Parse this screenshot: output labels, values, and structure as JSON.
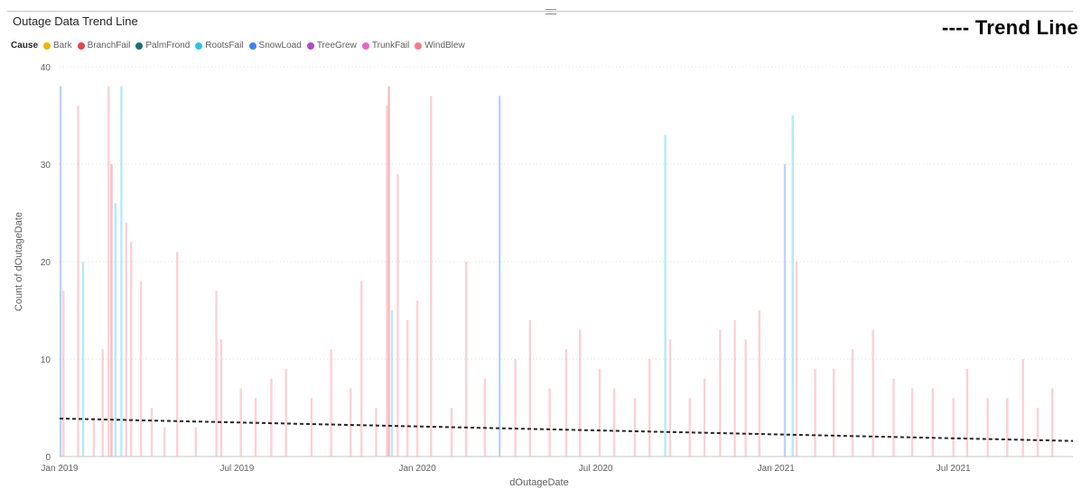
{
  "chart_data": {
    "type": "bar",
    "title": "Outage Data Trend Line",
    "annotation": "---- Trend Line",
    "xlabel": "dOutageDate",
    "ylabel": "Count of dOutageDate",
    "ylim": [
      0,
      40
    ],
    "yticks": [
      0,
      10,
      20,
      30,
      40
    ],
    "xlim": [
      "2019-01-01",
      "2021-10-31"
    ],
    "xticks": [
      {
        "date": "2019-01-01",
        "label": "Jan 2019"
      },
      {
        "date": "2019-07-01",
        "label": "Jul 2019"
      },
      {
        "date": "2020-01-01",
        "label": "Jan 2020"
      },
      {
        "date": "2020-07-01",
        "label": "Jul 2020"
      },
      {
        "date": "2021-01-01",
        "label": "Jan 2021"
      },
      {
        "date": "2021-07-01",
        "label": "Jul 2021"
      }
    ],
    "grid": true,
    "legend_position": "top-left",
    "legend": {
      "title": "Cause",
      "items": [
        {
          "name": "Bark",
          "color": "#E6B800"
        },
        {
          "name": "BranchFail",
          "color": "#E8434B"
        },
        {
          "name": "PalmFrond",
          "color": "#1B6E77"
        },
        {
          "name": "RootsFail",
          "color": "#2CC3E8"
        },
        {
          "name": "SnowLoad",
          "color": "#3B82F6"
        },
        {
          "name": "TreeGrew",
          "color": "#B04ACC"
        },
        {
          "name": "TrunkFail",
          "color": "#E964C4"
        },
        {
          "name": "WindBlew",
          "color": "#F47C8A"
        }
      ]
    },
    "spikes": [
      {
        "date": "2019-01-02",
        "value": 38,
        "cause": "SnowLoad"
      },
      {
        "date": "2019-01-05",
        "value": 17,
        "cause": "WindBlew"
      },
      {
        "date": "2019-01-20",
        "value": 36,
        "cause": "WindBlew"
      },
      {
        "date": "2019-01-25",
        "value": 20,
        "cause": "RootsFail"
      },
      {
        "date": "2019-02-05",
        "value": 4,
        "cause": "WindBlew"
      },
      {
        "date": "2019-02-14",
        "value": 11,
        "cause": "WindBlew"
      },
      {
        "date": "2019-02-20",
        "value": 38,
        "cause": "WindBlew"
      },
      {
        "date": "2019-02-23",
        "value": 30,
        "cause": "BranchFail"
      },
      {
        "date": "2019-02-27",
        "value": 26,
        "cause": "RootsFail"
      },
      {
        "date": "2019-03-05",
        "value": 38,
        "cause": "RootsFail"
      },
      {
        "date": "2019-03-10",
        "value": 24,
        "cause": "WindBlew"
      },
      {
        "date": "2019-03-15",
        "value": 22,
        "cause": "WindBlew"
      },
      {
        "date": "2019-03-25",
        "value": 18,
        "cause": "WindBlew"
      },
      {
        "date": "2019-04-05",
        "value": 5,
        "cause": "WindBlew"
      },
      {
        "date": "2019-04-18",
        "value": 3,
        "cause": "WindBlew"
      },
      {
        "date": "2019-05-01",
        "value": 21,
        "cause": "WindBlew"
      },
      {
        "date": "2019-05-20",
        "value": 3,
        "cause": "WindBlew"
      },
      {
        "date": "2019-06-10",
        "value": 17,
        "cause": "WindBlew"
      },
      {
        "date": "2019-06-15",
        "value": 12,
        "cause": "WindBlew"
      },
      {
        "date": "2019-07-05",
        "value": 7,
        "cause": "WindBlew"
      },
      {
        "date": "2019-07-20",
        "value": 6,
        "cause": "WindBlew"
      },
      {
        "date": "2019-08-05",
        "value": 8,
        "cause": "WindBlew"
      },
      {
        "date": "2019-08-20",
        "value": 9,
        "cause": "WindBlew"
      },
      {
        "date": "2019-09-15",
        "value": 6,
        "cause": "WindBlew"
      },
      {
        "date": "2019-10-05",
        "value": 11,
        "cause": "WindBlew"
      },
      {
        "date": "2019-10-25",
        "value": 7,
        "cause": "WindBlew"
      },
      {
        "date": "2019-11-05",
        "value": 18,
        "cause": "WindBlew"
      },
      {
        "date": "2019-11-20",
        "value": 5,
        "cause": "WindBlew"
      },
      {
        "date": "2019-12-01",
        "value": 36,
        "cause": "WindBlew"
      },
      {
        "date": "2019-12-03",
        "value": 38,
        "cause": "BranchFail"
      },
      {
        "date": "2019-12-06",
        "value": 15,
        "cause": "RootsFail"
      },
      {
        "date": "2019-12-12",
        "value": 29,
        "cause": "WindBlew"
      },
      {
        "date": "2019-12-22",
        "value": 14,
        "cause": "WindBlew"
      },
      {
        "date": "2020-01-01",
        "value": 16,
        "cause": "WindBlew"
      },
      {
        "date": "2020-01-15",
        "value": 37,
        "cause": "WindBlew"
      },
      {
        "date": "2020-02-05",
        "value": 5,
        "cause": "WindBlew"
      },
      {
        "date": "2020-02-20",
        "value": 20,
        "cause": "WindBlew"
      },
      {
        "date": "2020-03-10",
        "value": 8,
        "cause": "WindBlew"
      },
      {
        "date": "2020-03-25",
        "value": 37,
        "cause": "SnowLoad"
      },
      {
        "date": "2020-04-10",
        "value": 10,
        "cause": "WindBlew"
      },
      {
        "date": "2020-04-25",
        "value": 14,
        "cause": "WindBlew"
      },
      {
        "date": "2020-05-15",
        "value": 7,
        "cause": "WindBlew"
      },
      {
        "date": "2020-06-01",
        "value": 11,
        "cause": "WindBlew"
      },
      {
        "date": "2020-06-15",
        "value": 13,
        "cause": "WindBlew"
      },
      {
        "date": "2020-07-05",
        "value": 9,
        "cause": "WindBlew"
      },
      {
        "date": "2020-07-20",
        "value": 7,
        "cause": "WindBlew"
      },
      {
        "date": "2020-08-10",
        "value": 6,
        "cause": "WindBlew"
      },
      {
        "date": "2020-08-25",
        "value": 10,
        "cause": "WindBlew"
      },
      {
        "date": "2020-09-10",
        "value": 33,
        "cause": "RootsFail"
      },
      {
        "date": "2020-09-15",
        "value": 12,
        "cause": "WindBlew"
      },
      {
        "date": "2020-10-05",
        "value": 6,
        "cause": "WindBlew"
      },
      {
        "date": "2020-10-20",
        "value": 8,
        "cause": "WindBlew"
      },
      {
        "date": "2020-11-05",
        "value": 13,
        "cause": "WindBlew"
      },
      {
        "date": "2020-11-20",
        "value": 14,
        "cause": "WindBlew"
      },
      {
        "date": "2020-12-01",
        "value": 12,
        "cause": "WindBlew"
      },
      {
        "date": "2020-12-15",
        "value": 15,
        "cause": "WindBlew"
      },
      {
        "date": "2021-01-10",
        "value": 30,
        "cause": "SnowLoad"
      },
      {
        "date": "2021-01-18",
        "value": 35,
        "cause": "RootsFail"
      },
      {
        "date": "2021-01-22",
        "value": 20,
        "cause": "WindBlew"
      },
      {
        "date": "2021-02-10",
        "value": 9,
        "cause": "WindBlew"
      },
      {
        "date": "2021-03-01",
        "value": 9,
        "cause": "WindBlew"
      },
      {
        "date": "2021-03-20",
        "value": 11,
        "cause": "WindBlew"
      },
      {
        "date": "2021-04-10",
        "value": 13,
        "cause": "WindBlew"
      },
      {
        "date": "2021-05-01",
        "value": 8,
        "cause": "WindBlew"
      },
      {
        "date": "2021-05-20",
        "value": 7,
        "cause": "WindBlew"
      },
      {
        "date": "2021-06-10",
        "value": 7,
        "cause": "WindBlew"
      },
      {
        "date": "2021-07-01",
        "value": 6,
        "cause": "WindBlew"
      },
      {
        "date": "2021-07-15",
        "value": 9,
        "cause": "WindBlew"
      },
      {
        "date": "2021-08-05",
        "value": 6,
        "cause": "WindBlew"
      },
      {
        "date": "2021-08-25",
        "value": 6,
        "cause": "WindBlew"
      },
      {
        "date": "2021-09-10",
        "value": 10,
        "cause": "WindBlew"
      },
      {
        "date": "2021-09-25",
        "value": 5,
        "cause": "WindBlew"
      },
      {
        "date": "2021-10-10",
        "value": 7,
        "cause": "WindBlew"
      }
    ],
    "trend_line": {
      "start": {
        "date": "2019-01-01",
        "value": 3.9
      },
      "end": {
        "date": "2021-10-31",
        "value": 1.6
      }
    }
  }
}
